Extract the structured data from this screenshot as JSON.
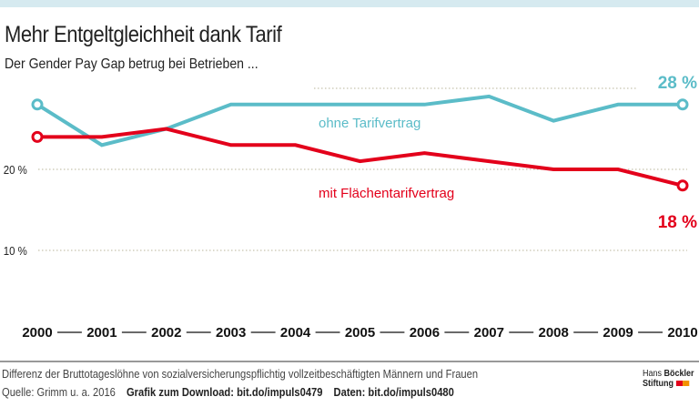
{
  "header": {
    "title": "Mehr Entgeltgleichheit dank Tarif",
    "subtitle": "Der Gender Pay Gap betrug bei Betrieben ..."
  },
  "chart_data": {
    "type": "line",
    "title": "Mehr Entgeltgleichheit dank Tarif",
    "subtitle": "Der Gender Pay Gap betrug bei Betrieben ...",
    "x": [
      "2000",
      "2001",
      "2002",
      "2003",
      "2004",
      "2005",
      "2006",
      "2007",
      "2008",
      "2009",
      "2010"
    ],
    "y_ticks": [
      {
        "value": 20,
        "label": "20 %"
      },
      {
        "value": 10,
        "label": "10 %"
      }
    ],
    "ylim": [
      5,
      31
    ],
    "grid": "dotted horizontal",
    "series": [
      {
        "name": "ohne Tarifvertrag",
        "color": "#5bbcc8",
        "values": [
          28,
          23,
          25,
          28,
          28,
          28,
          28,
          29,
          26,
          28,
          28
        ],
        "end_label": "28 %"
      },
      {
        "name": "mit Flächentarifvertrag",
        "color": "#e3001b",
        "values": [
          24,
          24,
          25,
          23,
          23,
          21,
          22,
          21,
          20,
          20,
          18
        ],
        "end_label": "18 %"
      }
    ]
  },
  "footer": {
    "note": "Differenz der Bruttotageslöhne von sozialversicherungspflichtig vollzeitbeschäftigten Männern und Frauen",
    "source": "Quelle: Grimm u. a. 2016",
    "download": "Grafik zum Download: bit.do/impuls0479",
    "data": "Daten: bit.do/impuls0480",
    "logo_text": "Hans Böckler Stiftung"
  }
}
